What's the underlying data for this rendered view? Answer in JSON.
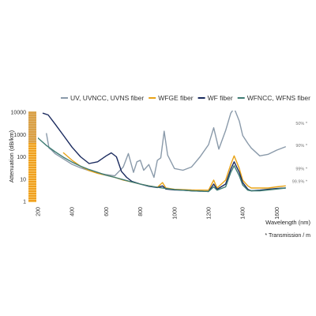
{
  "chart_data": {
    "type": "line",
    "xlabel": "Wavelength (nm)",
    "ylabel": "Attenuation (dB/km)",
    "xlim": [
      200,
      1700
    ],
    "ylim": [
      1,
      10000
    ],
    "y_scale": "log",
    "x_ticks": [
      "200",
      "400",
      "600",
      "800",
      "1000",
      "1200",
      "1400",
      "1600"
    ],
    "x_tick_values": [
      200,
      400,
      600,
      800,
      1000,
      1200,
      1400,
      1600
    ],
    "y_ticks": [
      "1",
      "10",
      "100",
      "1000",
      "10000"
    ],
    "y_tick_values": [
      1,
      10,
      100,
      1000,
      10000
    ],
    "legend_position": "top-right",
    "series": [
      {
        "name": "UV, UVNCC, UVNS fiber",
        "color": "#8a9aaa",
        "points": [
          [
            250,
            1100
          ],
          [
            265,
            250
          ],
          [
            280,
            200
          ],
          [
            300,
            140
          ],
          [
            350,
            80
          ],
          [
            400,
            46
          ],
          [
            450,
            32
          ],
          [
            500,
            24
          ],
          [
            550,
            19
          ],
          [
            600,
            16
          ],
          [
            650,
            14
          ],
          [
            700,
            35
          ],
          [
            730,
            140
          ],
          [
            760,
            20
          ],
          [
            780,
            60
          ],
          [
            800,
            70
          ],
          [
            820,
            25
          ],
          [
            850,
            45
          ],
          [
            880,
            12
          ],
          [
            900,
            70
          ],
          [
            920,
            90
          ],
          [
            940,
            1400
          ],
          [
            960,
            120
          ],
          [
            1000,
            30
          ],
          [
            1050,
            25
          ],
          [
            1100,
            35
          ],
          [
            1150,
            100
          ],
          [
            1200,
            350
          ],
          [
            1230,
            2000
          ],
          [
            1260,
            220
          ],
          [
            1300,
            1500
          ],
          [
            1330,
            9000
          ],
          [
            1350,
            15000
          ],
          [
            1380,
            4000
          ],
          [
            1400,
            900
          ],
          [
            1430,
            400
          ],
          [
            1450,
            250
          ],
          [
            1500,
            110
          ],
          [
            1550,
            130
          ],
          [
            1600,
            200
          ],
          [
            1650,
            280
          ]
        ]
      },
      {
        "name": "WFGE fiber",
        "color": "#e8a317",
        "points": [
          [
            350,
            150
          ],
          [
            400,
            70
          ],
          [
            450,
            38
          ],
          [
            500,
            24
          ],
          [
            550,
            18
          ],
          [
            600,
            15
          ],
          [
            650,
            12
          ],
          [
            700,
            9
          ],
          [
            750,
            7.5
          ],
          [
            800,
            6
          ],
          [
            850,
            5
          ],
          [
            900,
            4.3
          ],
          [
            930,
            7
          ],
          [
            950,
            4
          ],
          [
            1000,
            3.5
          ],
          [
            1100,
            3.3
          ],
          [
            1200,
            3.2
          ],
          [
            1230,
            9
          ],
          [
            1250,
            4
          ],
          [
            1300,
            9
          ],
          [
            1330,
            45
          ],
          [
            1350,
            110
          ],
          [
            1380,
            30
          ],
          [
            1400,
            9
          ],
          [
            1430,
            5
          ],
          [
            1450,
            4
          ],
          [
            1500,
            4
          ],
          [
            1550,
            4
          ],
          [
            1600,
            4.5
          ],
          [
            1650,
            5
          ]
        ]
      },
      {
        "name": "WF fiber",
        "color": "#1a2a5e",
        "points": [
          [
            230,
            9000
          ],
          [
            260,
            7500
          ],
          [
            300,
            3000
          ],
          [
            350,
            900
          ],
          [
            400,
            270
          ],
          [
            450,
            100
          ],
          [
            500,
            50
          ],
          [
            550,
            60
          ],
          [
            600,
            110
          ],
          [
            630,
            150
          ],
          [
            660,
            100
          ],
          [
            690,
            22
          ],
          [
            720,
            12
          ],
          [
            750,
            8
          ],
          [
            800,
            6
          ],
          [
            850,
            4.8
          ],
          [
            900,
            4.2
          ],
          [
            930,
            5
          ],
          [
            950,
            3.6
          ],
          [
            1000,
            3.3
          ],
          [
            1050,
            3.2
          ],
          [
            1100,
            3
          ],
          [
            1200,
            2.8
          ],
          [
            1230,
            6
          ],
          [
            1250,
            3.5
          ],
          [
            1300,
            6
          ],
          [
            1330,
            28
          ],
          [
            1350,
            60
          ],
          [
            1380,
            20
          ],
          [
            1400,
            7
          ],
          [
            1430,
            3.5
          ],
          [
            1450,
            3
          ],
          [
            1500,
            3.2
          ],
          [
            1550,
            3.5
          ],
          [
            1600,
            3.8
          ],
          [
            1650,
            4
          ]
        ]
      },
      {
        "name": "WFNCC, WFNS fiber",
        "color": "#3f7c74",
        "points": [
          [
            200,
            700
          ],
          [
            250,
            320
          ],
          [
            300,
            170
          ],
          [
            350,
            95
          ],
          [
            400,
            58
          ],
          [
            450,
            38
          ],
          [
            500,
            27
          ],
          [
            550,
            20
          ],
          [
            600,
            15
          ],
          [
            650,
            12
          ],
          [
            700,
            9.5
          ],
          [
            750,
            7.5
          ],
          [
            800,
            6
          ],
          [
            850,
            5
          ],
          [
            900,
            4.3
          ],
          [
            950,
            3.8
          ],
          [
            1000,
            3.4
          ],
          [
            1100,
            3
          ],
          [
            1200,
            2.8
          ],
          [
            1230,
            4.5
          ],
          [
            1250,
            3.2
          ],
          [
            1300,
            4.5
          ],
          [
            1330,
            20
          ],
          [
            1350,
            40
          ],
          [
            1380,
            14
          ],
          [
            1400,
            5.5
          ],
          [
            1430,
            3.2
          ],
          [
            1450,
            3
          ],
          [
            1500,
            3
          ],
          [
            1550,
            3.3
          ],
          [
            1600,
            3.6
          ],
          [
            1650,
            4
          ]
        ]
      }
    ],
    "annotations": [
      {
        "text": "50% *",
        "x": 1700,
        "y": 3200
      },
      {
        "text": "90% *",
        "x": 1700,
        "y": 320
      },
      {
        "text": "99% *",
        "x": 1700,
        "y": 30
      },
      {
        "text": "99.9% *",
        "x": 1700,
        "y": 8
      }
    ],
    "footnote": "* Transmission / m"
  }
}
